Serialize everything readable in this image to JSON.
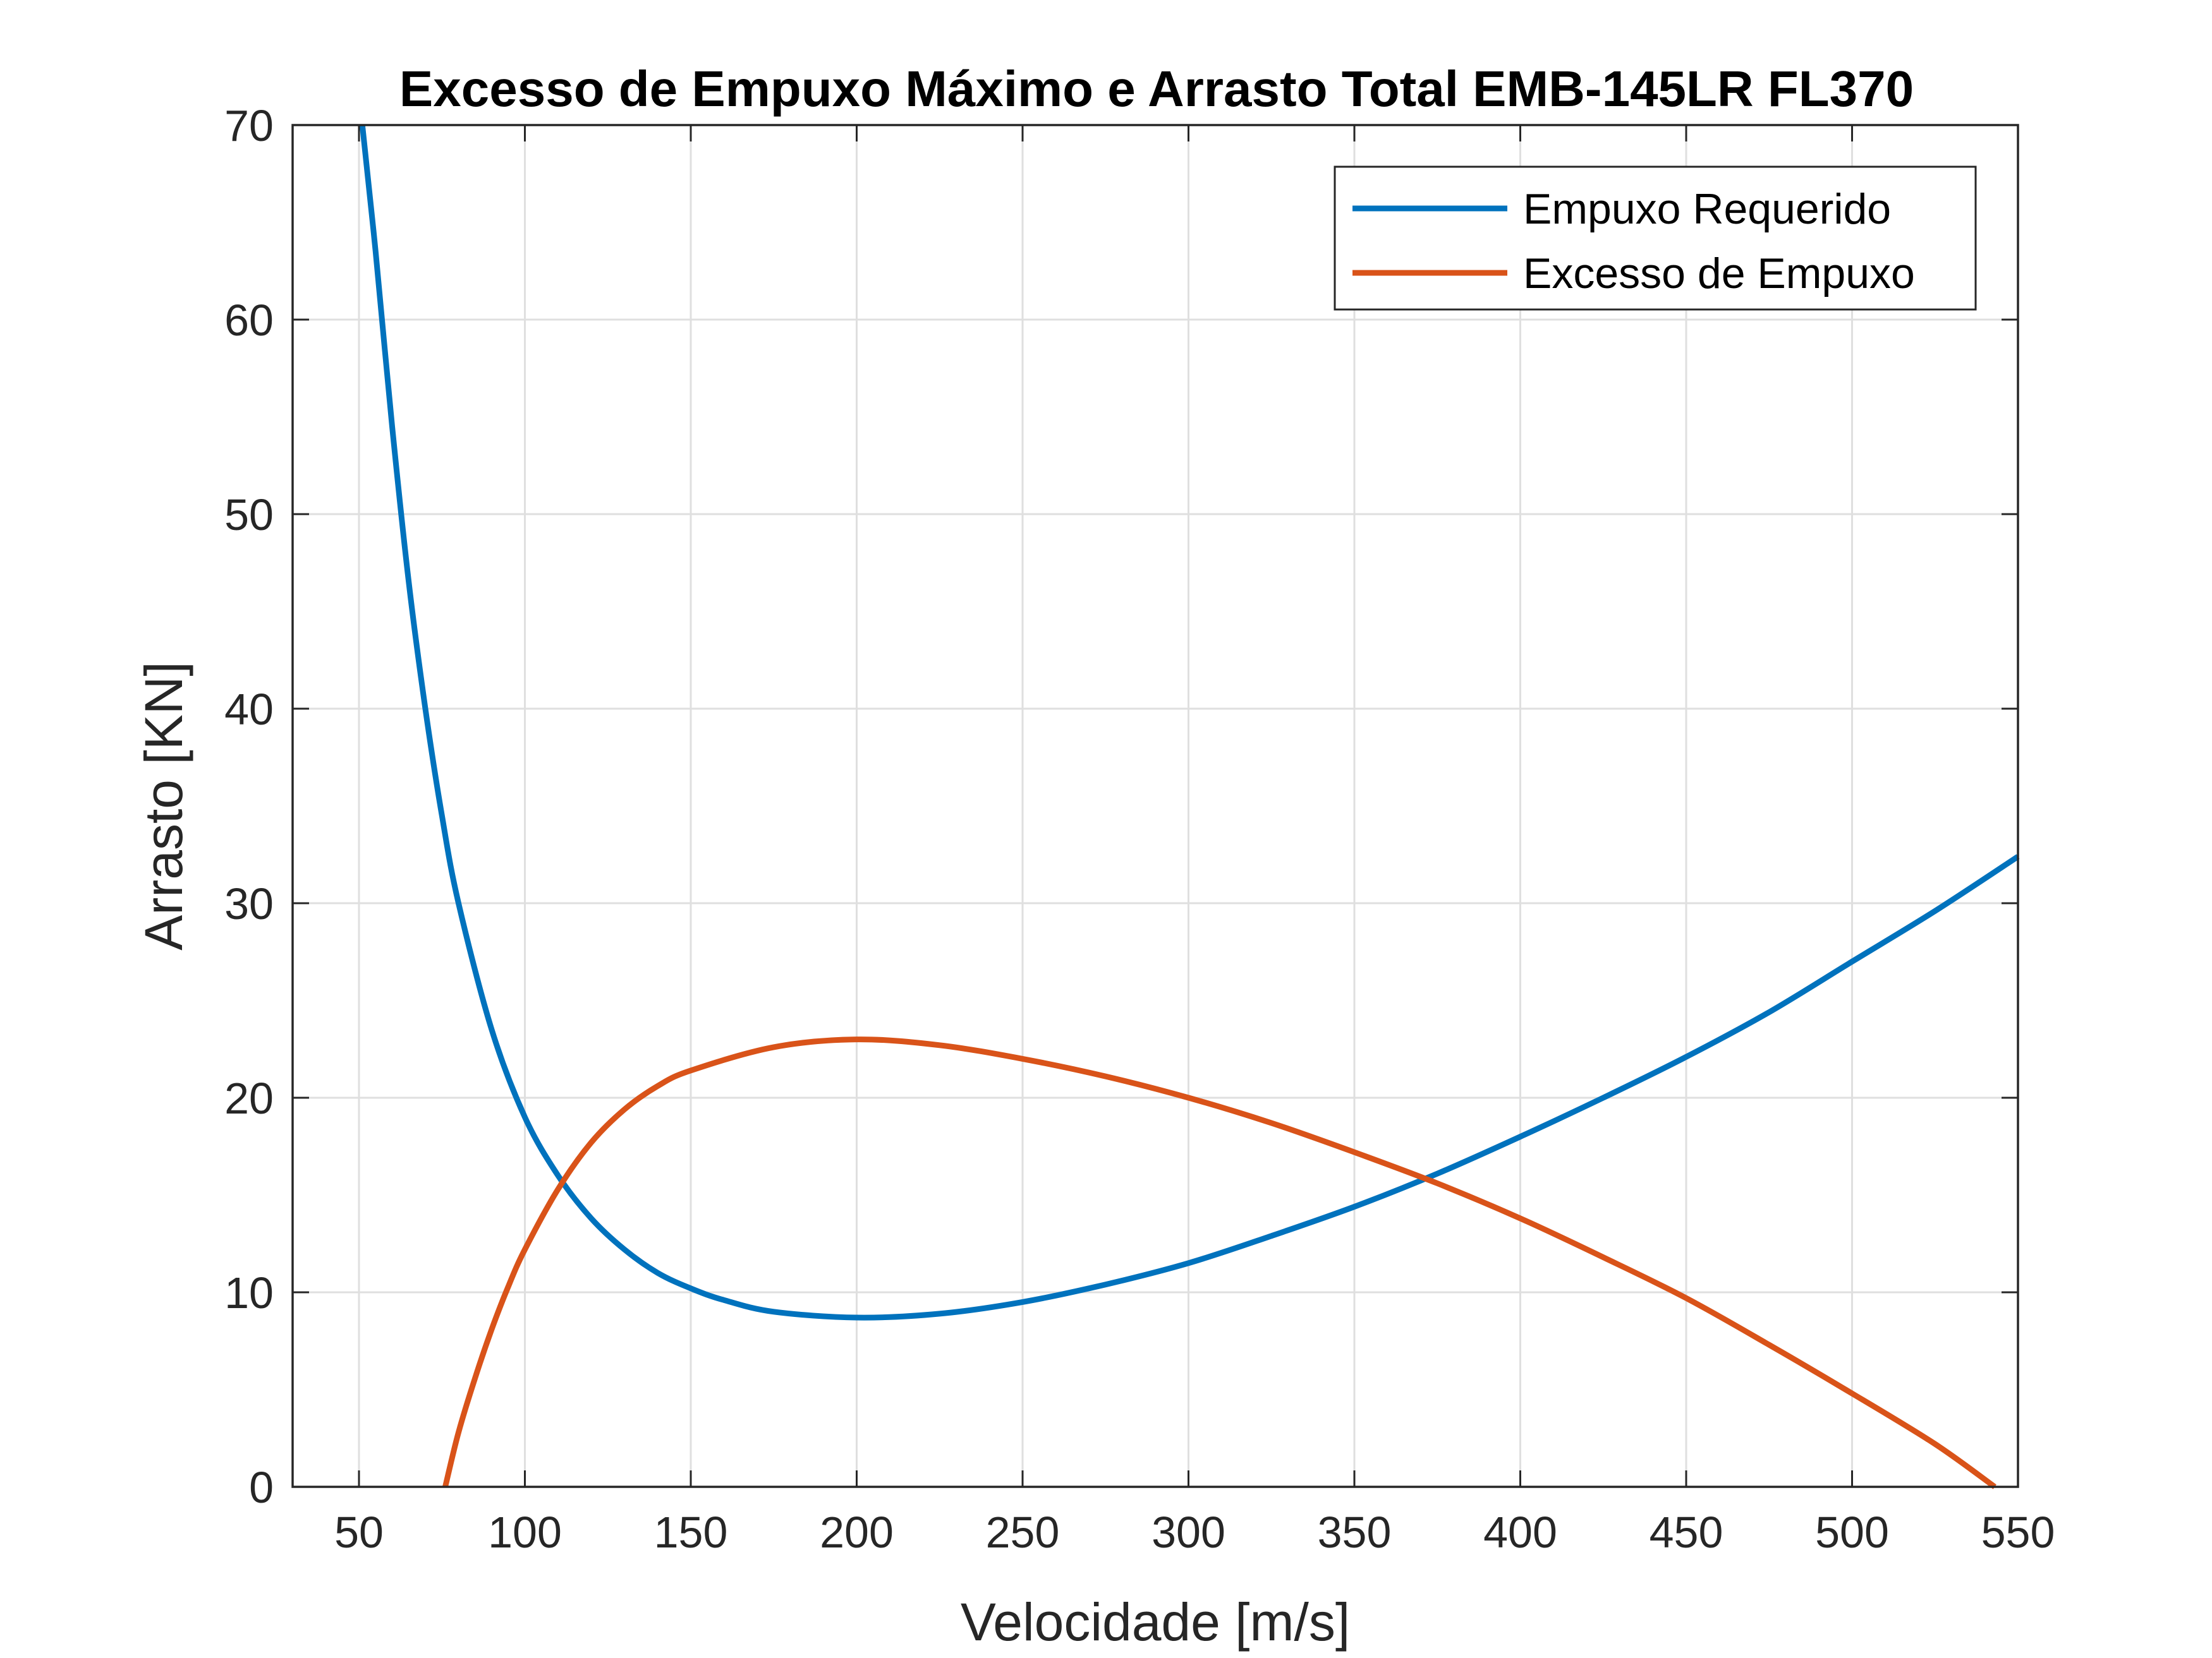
{
  "chart_data": {
    "type": "line",
    "title": "Excesso de Empuxo Máximo e Arrasto Total EMB-145LR FL370",
    "xlabel": "Velocidade [m/s]",
    "ylabel": "Arrasto  [KN]",
    "xlim": [
      30,
      550
    ],
    "ylim": [
      0,
      70
    ],
    "xticks": [
      50,
      100,
      150,
      200,
      250,
      300,
      350,
      400,
      450,
      500,
      550
    ],
    "yticks": [
      0,
      10,
      20,
      30,
      40,
      50,
      60,
      70
    ],
    "grid": true,
    "legend_location": "top-right",
    "series": [
      {
        "name": "Empuxo Requerido",
        "color": "#0072BD",
        "x": [
          51,
          55,
          60,
          65,
          70,
          75,
          80,
          90,
          100,
          110,
          120,
          130,
          140,
          150,
          160,
          175,
          200,
          225,
          250,
          275,
          300,
          325,
          350,
          375,
          400,
          425,
          450,
          475,
          500,
          525,
          550
        ],
        "y": [
          70,
          63.5,
          54.5,
          46.5,
          40,
          34.5,
          30,
          23.5,
          19,
          16,
          13.8,
          12.2,
          11,
          10.2,
          9.6,
          9.0,
          8.7,
          8.9,
          9.5,
          10.4,
          11.5,
          12.9,
          14.4,
          16.1,
          18.0,
          20.0,
          22.1,
          24.4,
          27.0,
          29.6,
          32.4
        ]
      },
      {
        "name": "Excesso de Empuxo",
        "color": "#D95319",
        "x": [
          76,
          80,
          85,
          90,
          95,
          100,
          110,
          120,
          130,
          140,
          150,
          175,
          200,
          225,
          250,
          275,
          300,
          325,
          350,
          375,
          400,
          425,
          450,
          475,
          500,
          525,
          543
        ],
        "y": [
          0,
          2.8,
          5.6,
          8.1,
          10.3,
          12.2,
          15.3,
          17.7,
          19.4,
          20.6,
          21.4,
          22.6,
          23.0,
          22.7,
          22.0,
          21.1,
          20.0,
          18.7,
          17.2,
          15.6,
          13.8,
          11.8,
          9.7,
          7.3,
          4.8,
          2.2,
          0
        ]
      }
    ]
  }
}
